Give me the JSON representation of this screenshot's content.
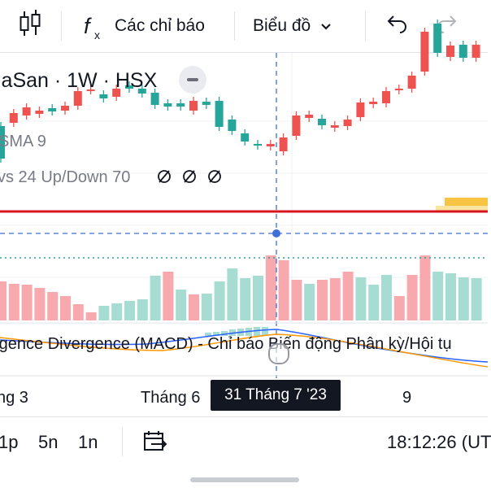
{
  "toolbar": {
    "indicators_label": "Các chỉ báo",
    "chart_type_label": "Biểu đồ"
  },
  "legend": {
    "symbol": "laSan · 1W · HSX",
    "sma": "SMA 9",
    "volume": "vs 24 Up/Down 70",
    "macd": "rgence Divergence (MACD) - Chỉ báo Biến động Phân kỳ/Hội tụ"
  },
  "xaxis": {
    "ticks": [
      "ng 3",
      "Tháng 6",
      "9"
    ],
    "crosshair_date": "31 Tháng 7 '23"
  },
  "bottombar": {
    "intervals": [
      "1p",
      "5n",
      "1n"
    ],
    "clock": "18:12:26 (UT"
  },
  "colors": {
    "up": "#26a69a",
    "down": "#ef5350",
    "volume_up": "#a7dcd3",
    "volume_down": "#f7a9ad",
    "sma_line": "#d6151f",
    "crosshair": "#3f6fd8",
    "macd_line": "#2962ff",
    "signal_line": "#ff9800",
    "level_band": "#f7c443"
  },
  "icons": [
    "candlestick-chart-icon",
    "function-icon",
    "chevron-down-icon",
    "undo-icon",
    "redo-icon",
    "eye-off-icon",
    "calendar-range-icon"
  ],
  "chart_data": {
    "type": "candlestick",
    "candles": [
      {
        "o": 240,
        "c": 200,
        "dir": "up"
      },
      {
        "o": 244,
        "c": 256,
        "dir": "down"
      },
      {
        "o": 253,
        "c": 263,
        "dir": "down"
      },
      {
        "o": 255,
        "c": 259,
        "dir": "down"
      },
      {
        "o": 258,
        "c": 262,
        "dir": "up"
      },
      {
        "o": 259,
        "c": 265,
        "dir": "down"
      },
      {
        "o": 265,
        "c": 283,
        "dir": "down"
      },
      {
        "o": 284,
        "c": 285,
        "dir": "down"
      },
      {
        "o": 274,
        "c": 279,
        "dir": "up"
      },
      {
        "o": 276,
        "c": 286,
        "dir": "down"
      },
      {
        "o": 286,
        "c": 290,
        "dir": "up"
      },
      {
        "o": 280,
        "c": 286,
        "dir": "up"
      },
      {
        "o": 266,
        "c": 281,
        "dir": "up"
      },
      {
        "o": 264,
        "c": 268,
        "dir": "up"
      },
      {
        "o": 264,
        "c": 268,
        "dir": "up"
      },
      {
        "o": 259,
        "c": 271,
        "dir": "down"
      },
      {
        "o": 266,
        "c": 270,
        "dir": "up"
      },
      {
        "o": 239,
        "c": 271,
        "dir": "up"
      },
      {
        "o": 234,
        "c": 248,
        "dir": "up"
      },
      {
        "o": 221,
        "c": 231,
        "dir": "up"
      },
      {
        "o": 216,
        "c": 218,
        "dir": "up"
      },
      {
        "o": 215,
        "c": 218,
        "dir": "down"
      },
      {
        "o": 209,
        "c": 226,
        "dir": "down"
      },
      {
        "o": 228,
        "c": 253,
        "dir": "down"
      },
      {
        "o": 250,
        "c": 254,
        "dir": "down"
      },
      {
        "o": 241,
        "c": 249,
        "dir": "up"
      },
      {
        "o": 238,
        "c": 241,
        "dir": "down"
      },
      {
        "o": 240,
        "c": 248,
        "dir": "down"
      },
      {
        "o": 251,
        "c": 269,
        "dir": "down"
      },
      {
        "o": 267,
        "c": 270,
        "dir": "down"
      },
      {
        "o": 268,
        "c": 283,
        "dir": "down"
      },
      {
        "o": 284,
        "c": 286,
        "dir": "down"
      },
      {
        "o": 286,
        "c": 302,
        "dir": "down"
      },
      {
        "o": 307,
        "c": 356,
        "dir": "down"
      },
      {
        "o": 330,
        "c": 366,
        "dir": "up"
      },
      {
        "o": 325,
        "c": 339,
        "dir": "down"
      },
      {
        "o": 324,
        "c": 340,
        "dir": "up"
      },
      {
        "o": 324,
        "c": 340,
        "dir": "down"
      }
    ],
    "volume": [
      {
        "v": 48,
        "dir": "down"
      },
      {
        "v": 45,
        "dir": "down"
      },
      {
        "v": 44,
        "dir": "down"
      },
      {
        "v": 40,
        "dir": "down"
      },
      {
        "v": 35,
        "dir": "down"
      },
      {
        "v": 30,
        "dir": "down"
      },
      {
        "v": 20,
        "dir": "down"
      },
      {
        "v": 10,
        "dir": "down"
      },
      {
        "v": 18,
        "dir": "up"
      },
      {
        "v": 21,
        "dir": "up"
      },
      {
        "v": 24,
        "dir": "up"
      },
      {
        "v": 26,
        "dir": "up"
      },
      {
        "v": 55,
        "dir": "up"
      },
      {
        "v": 60,
        "dir": "down"
      },
      {
        "v": 38,
        "dir": "up"
      },
      {
        "v": 32,
        "dir": "down"
      },
      {
        "v": 33,
        "dir": "up"
      },
      {
        "v": 48,
        "dir": "up"
      },
      {
        "v": 64,
        "dir": "up"
      },
      {
        "v": 52,
        "dir": "up"
      },
      {
        "v": 55,
        "dir": "up"
      },
      {
        "v": 80,
        "dir": "down"
      },
      {
        "v": 74,
        "dir": "down"
      },
      {
        "v": 50,
        "dir": "down"
      },
      {
        "v": 45,
        "dir": "up"
      },
      {
        "v": 50,
        "dir": "down"
      },
      {
        "v": 52,
        "dir": "down"
      },
      {
        "v": 60,
        "dir": "down"
      },
      {
        "v": 53,
        "dir": "up"
      },
      {
        "v": 44,
        "dir": "up"
      },
      {
        "v": 56,
        "dir": "up"
      },
      {
        "v": 30,
        "dir": "down"
      },
      {
        "v": 56,
        "dir": "down"
      },
      {
        "v": 80,
        "dir": "down"
      },
      {
        "v": 60,
        "dir": "up"
      },
      {
        "v": 58,
        "dir": "up"
      },
      {
        "v": 53,
        "dir": "up"
      },
      {
        "v": 52,
        "dir": "up"
      }
    ]
  }
}
